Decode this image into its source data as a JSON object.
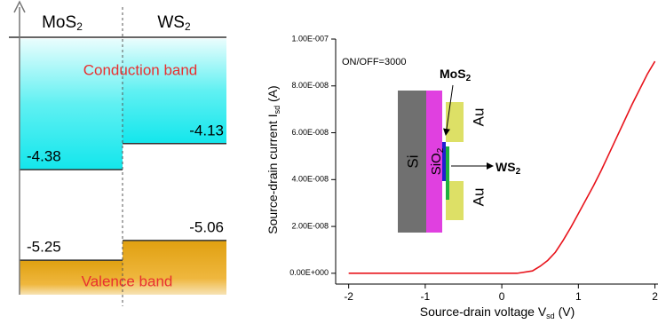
{
  "band_diagram": {
    "columns": [
      [
        "MoS",
        "2"
      ],
      [
        "WS",
        "2"
      ]
    ],
    "conduction_band": "Conduction band",
    "valence_band": "Valence band",
    "conduction_edges": [
      -4.38,
      -4.13
    ],
    "valence_edges": [
      -5.25,
      -5.06
    ]
  },
  "chart_data": {
    "type": "line",
    "annotation": "ON/OFF=3000",
    "xlabel": [
      "Source-drain voltage V",
      "sd",
      " (V)"
    ],
    "ylabel": [
      "Source-drain current I",
      "sd",
      " (A)"
    ],
    "x": [
      -2,
      -1.5,
      -1,
      -0.5,
      0,
      0.2,
      0.4,
      0.5,
      0.6,
      0.7,
      0.8,
      0.9,
      1.0,
      1.1,
      1.2,
      1.3,
      1.4,
      1.5,
      1.6,
      1.7,
      1.8,
      1.9,
      2.0
    ],
    "series": [
      {
        "color": "#e8141c",
        "values": [
          0,
          0,
          0,
          0,
          0,
          0,
          1e-09,
          3e-09,
          5.5e-09,
          9e-09,
          1.4e-08,
          1.95e-08,
          2.55e-08,
          3.15e-08,
          3.75e-08,
          4.4e-08,
          5.1e-08,
          5.8e-08,
          6.5e-08,
          7.2e-08,
          7.85e-08,
          8.5e-08,
          9.05e-08
        ]
      }
    ],
    "xlim": [
      -2.17,
      2.04
    ],
    "ylim": [
      -4.6e-09,
      1e-07
    ],
    "xticks": [
      -2,
      -1,
      0,
      1,
      2
    ],
    "yticks": [
      {
        "value": 0,
        "label": "0.00E+000"
      },
      {
        "value": 2e-08,
        "label": "2.00E-008"
      },
      {
        "value": 4e-08,
        "label": "4.00E-008"
      },
      {
        "value": 6e-08,
        "label": "6.00E-008"
      },
      {
        "value": 8e-08,
        "label": "8.00E-008"
      },
      {
        "value": 1e-07,
        "label": "1.00E-007"
      }
    ]
  },
  "inset": {
    "si": "Si",
    "sio2": [
      "SiO",
      "2"
    ],
    "au_top": "Au",
    "au_bottom": "Au",
    "mos2": [
      "MoS",
      "2"
    ],
    "ws2": [
      "WS",
      "2"
    ]
  }
}
